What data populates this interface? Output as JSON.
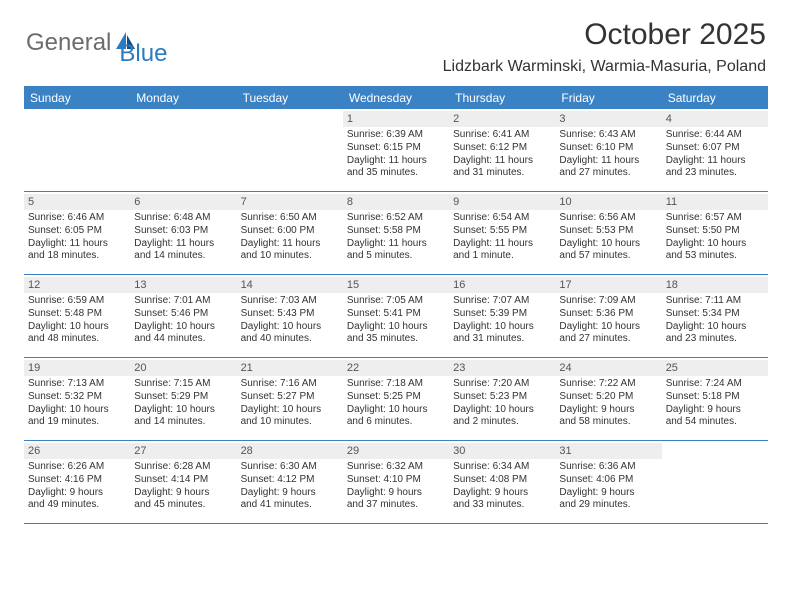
{
  "brand": {
    "first": "General",
    "second": "Blue"
  },
  "title": "October 2025",
  "location": "Lidzbark Warminski, Warmia-Masuria, Poland",
  "colors": {
    "header_bg": "#3b82c4",
    "header_text": "#ffffff",
    "daynum_bg": "#eeeeee",
    "body_text": "#333333",
    "logo_gray": "#6c6c6c",
    "logo_blue": "#2b7bbf",
    "border": "#3b82c4"
  },
  "day_names": [
    "Sunday",
    "Monday",
    "Tuesday",
    "Wednesday",
    "Thursday",
    "Friday",
    "Saturday"
  ],
  "weeks": [
    [
      {
        "n": "",
        "sr": "",
        "ss": "",
        "dl1": "",
        "dl2": ""
      },
      {
        "n": "",
        "sr": "",
        "ss": "",
        "dl1": "",
        "dl2": ""
      },
      {
        "n": "",
        "sr": "",
        "ss": "",
        "dl1": "",
        "dl2": ""
      },
      {
        "n": "1",
        "sr": "Sunrise: 6:39 AM",
        "ss": "Sunset: 6:15 PM",
        "dl1": "Daylight: 11 hours",
        "dl2": "and 35 minutes."
      },
      {
        "n": "2",
        "sr": "Sunrise: 6:41 AM",
        "ss": "Sunset: 6:12 PM",
        "dl1": "Daylight: 11 hours",
        "dl2": "and 31 minutes."
      },
      {
        "n": "3",
        "sr": "Sunrise: 6:43 AM",
        "ss": "Sunset: 6:10 PM",
        "dl1": "Daylight: 11 hours",
        "dl2": "and 27 minutes."
      },
      {
        "n": "4",
        "sr": "Sunrise: 6:44 AM",
        "ss": "Sunset: 6:07 PM",
        "dl1": "Daylight: 11 hours",
        "dl2": "and 23 minutes."
      }
    ],
    [
      {
        "n": "5",
        "sr": "Sunrise: 6:46 AM",
        "ss": "Sunset: 6:05 PM",
        "dl1": "Daylight: 11 hours",
        "dl2": "and 18 minutes."
      },
      {
        "n": "6",
        "sr": "Sunrise: 6:48 AM",
        "ss": "Sunset: 6:03 PM",
        "dl1": "Daylight: 11 hours",
        "dl2": "and 14 minutes."
      },
      {
        "n": "7",
        "sr": "Sunrise: 6:50 AM",
        "ss": "Sunset: 6:00 PM",
        "dl1": "Daylight: 11 hours",
        "dl2": "and 10 minutes."
      },
      {
        "n": "8",
        "sr": "Sunrise: 6:52 AM",
        "ss": "Sunset: 5:58 PM",
        "dl1": "Daylight: 11 hours",
        "dl2": "and 5 minutes."
      },
      {
        "n": "9",
        "sr": "Sunrise: 6:54 AM",
        "ss": "Sunset: 5:55 PM",
        "dl1": "Daylight: 11 hours",
        "dl2": "and 1 minute."
      },
      {
        "n": "10",
        "sr": "Sunrise: 6:56 AM",
        "ss": "Sunset: 5:53 PM",
        "dl1": "Daylight: 10 hours",
        "dl2": "and 57 minutes."
      },
      {
        "n": "11",
        "sr": "Sunrise: 6:57 AM",
        "ss": "Sunset: 5:50 PM",
        "dl1": "Daylight: 10 hours",
        "dl2": "and 53 minutes."
      }
    ],
    [
      {
        "n": "12",
        "sr": "Sunrise: 6:59 AM",
        "ss": "Sunset: 5:48 PM",
        "dl1": "Daylight: 10 hours",
        "dl2": "and 48 minutes."
      },
      {
        "n": "13",
        "sr": "Sunrise: 7:01 AM",
        "ss": "Sunset: 5:46 PM",
        "dl1": "Daylight: 10 hours",
        "dl2": "and 44 minutes."
      },
      {
        "n": "14",
        "sr": "Sunrise: 7:03 AM",
        "ss": "Sunset: 5:43 PM",
        "dl1": "Daylight: 10 hours",
        "dl2": "and 40 minutes."
      },
      {
        "n": "15",
        "sr": "Sunrise: 7:05 AM",
        "ss": "Sunset: 5:41 PM",
        "dl1": "Daylight: 10 hours",
        "dl2": "and 35 minutes."
      },
      {
        "n": "16",
        "sr": "Sunrise: 7:07 AM",
        "ss": "Sunset: 5:39 PM",
        "dl1": "Daylight: 10 hours",
        "dl2": "and 31 minutes."
      },
      {
        "n": "17",
        "sr": "Sunrise: 7:09 AM",
        "ss": "Sunset: 5:36 PM",
        "dl1": "Daylight: 10 hours",
        "dl2": "and 27 minutes."
      },
      {
        "n": "18",
        "sr": "Sunrise: 7:11 AM",
        "ss": "Sunset: 5:34 PM",
        "dl1": "Daylight: 10 hours",
        "dl2": "and 23 minutes."
      }
    ],
    [
      {
        "n": "19",
        "sr": "Sunrise: 7:13 AM",
        "ss": "Sunset: 5:32 PM",
        "dl1": "Daylight: 10 hours",
        "dl2": "and 19 minutes."
      },
      {
        "n": "20",
        "sr": "Sunrise: 7:15 AM",
        "ss": "Sunset: 5:29 PM",
        "dl1": "Daylight: 10 hours",
        "dl2": "and 14 minutes."
      },
      {
        "n": "21",
        "sr": "Sunrise: 7:16 AM",
        "ss": "Sunset: 5:27 PM",
        "dl1": "Daylight: 10 hours",
        "dl2": "and 10 minutes."
      },
      {
        "n": "22",
        "sr": "Sunrise: 7:18 AM",
        "ss": "Sunset: 5:25 PM",
        "dl1": "Daylight: 10 hours",
        "dl2": "and 6 minutes."
      },
      {
        "n": "23",
        "sr": "Sunrise: 7:20 AM",
        "ss": "Sunset: 5:23 PM",
        "dl1": "Daylight: 10 hours",
        "dl2": "and 2 minutes."
      },
      {
        "n": "24",
        "sr": "Sunrise: 7:22 AM",
        "ss": "Sunset: 5:20 PM",
        "dl1": "Daylight: 9 hours",
        "dl2": "and 58 minutes."
      },
      {
        "n": "25",
        "sr": "Sunrise: 7:24 AM",
        "ss": "Sunset: 5:18 PM",
        "dl1": "Daylight: 9 hours",
        "dl2": "and 54 minutes."
      }
    ],
    [
      {
        "n": "26",
        "sr": "Sunrise: 6:26 AM",
        "ss": "Sunset: 4:16 PM",
        "dl1": "Daylight: 9 hours",
        "dl2": "and 49 minutes."
      },
      {
        "n": "27",
        "sr": "Sunrise: 6:28 AM",
        "ss": "Sunset: 4:14 PM",
        "dl1": "Daylight: 9 hours",
        "dl2": "and 45 minutes."
      },
      {
        "n": "28",
        "sr": "Sunrise: 6:30 AM",
        "ss": "Sunset: 4:12 PM",
        "dl1": "Daylight: 9 hours",
        "dl2": "and 41 minutes."
      },
      {
        "n": "29",
        "sr": "Sunrise: 6:32 AM",
        "ss": "Sunset: 4:10 PM",
        "dl1": "Daylight: 9 hours",
        "dl2": "and 37 minutes."
      },
      {
        "n": "30",
        "sr": "Sunrise: 6:34 AM",
        "ss": "Sunset: 4:08 PM",
        "dl1": "Daylight: 9 hours",
        "dl2": "and 33 minutes."
      },
      {
        "n": "31",
        "sr": "Sunrise: 6:36 AM",
        "ss": "Sunset: 4:06 PM",
        "dl1": "Daylight: 9 hours",
        "dl2": "and 29 minutes."
      },
      {
        "n": "",
        "sr": "",
        "ss": "",
        "dl1": "",
        "dl2": ""
      }
    ]
  ]
}
